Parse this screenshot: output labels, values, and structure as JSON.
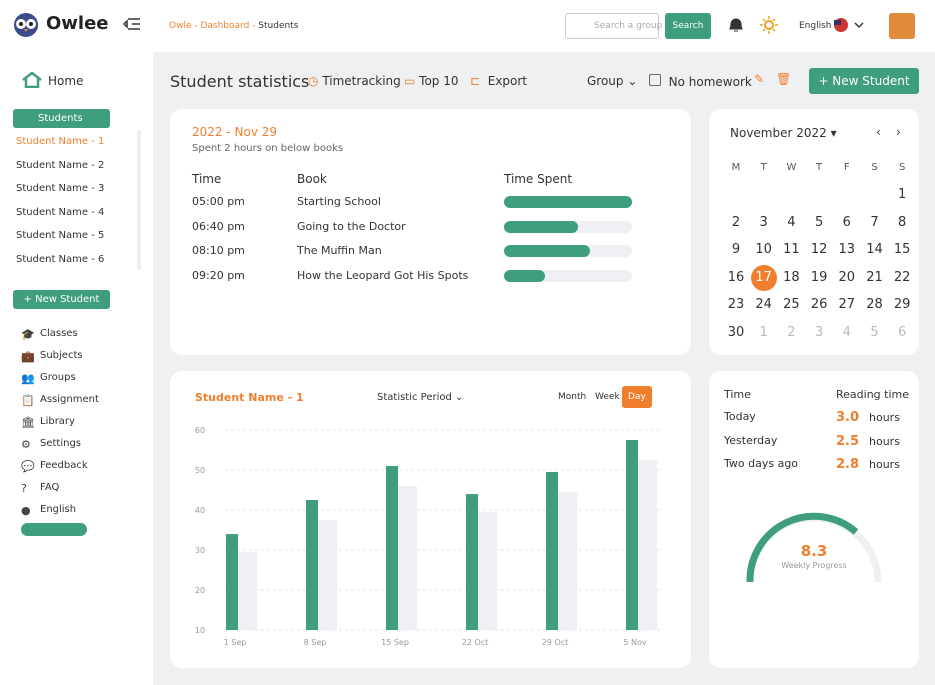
{
  "header": {
    "brand": "Owlee",
    "breadcrumb": [
      "Owle -",
      "Dashboard -",
      "Students"
    ],
    "search_placeholder": "Search a group",
    "search_button": "Search",
    "language": "English"
  },
  "sidebar": {
    "home": "Home",
    "students": "Students",
    "student_list": [
      "Student Name - 1",
      "Student Name - 2",
      "Student Name - 3",
      "Student Name - 4",
      "Student Name - 5",
      "Student Name - 6"
    ],
    "new_student": "+ New Student",
    "menu": [
      "Classes",
      "Subjects",
      "Groups",
      "Assignment",
      "Library",
      "Settings",
      "Feedback",
      "FAQ",
      "English"
    ]
  },
  "toolbar": {
    "title": "Student statistics",
    "timetracking": "Timetracking",
    "top10": "Top 10",
    "export": "Export",
    "group": "Group",
    "no_homework": "No homework",
    "new_student": "+ New Student"
  },
  "books": {
    "date": "2022 - Nov 29",
    "subtitle": "Spent 2 hours on below books",
    "columns": [
      "Time",
      "Book",
      "Time Spent"
    ],
    "rows": [
      {
        "time": "05:00 pm",
        "book": "Starting School",
        "spent": 100
      },
      {
        "time": "06:40 pm",
        "book": "Going to the Doctor",
        "spent": 58
      },
      {
        "time": "08:10 pm",
        "book": "The Muffin Man",
        "spent": 67
      },
      {
        "time": "09:20 pm",
        "book": "How the Leopard Got His Spots",
        "spent": 32
      }
    ]
  },
  "calendar": {
    "month": "November 2022",
    "weekdays": [
      "M",
      "T",
      "W",
      "T",
      "F",
      "S",
      "S"
    ],
    "days": [
      1,
      2,
      3,
      4,
      5,
      6,
      7,
      8,
      9,
      10,
      11,
      12,
      13,
      14,
      15,
      16,
      17,
      18,
      19,
      20,
      21,
      22,
      23,
      24,
      25,
      26,
      27,
      28,
      29,
      30
    ],
    "next_days": [
      1,
      2,
      3,
      4,
      5,
      6
    ],
    "selected_day": 17
  },
  "chart_data": {
    "type": "bar",
    "title": "Student Name - 1",
    "period": "Statistic Period",
    "tabs": [
      "Month",
      "Week",
      "Day"
    ],
    "categories": [
      "1 Sep",
      "8 Sep",
      "15 Sep",
      "22 Oct",
      "29 Oct",
      "5 Nov"
    ],
    "ylim": [
      10,
      60
    ],
    "yticks": [
      10,
      20,
      30,
      40,
      50,
      60
    ],
    "grid": true,
    "series": [
      {
        "color": "#3e9e7e",
        "values": [
          34,
          42.5,
          51,
          44,
          49.5,
          57.5
        ]
      },
      {
        "color": "#eef0f3",
        "values": [
          29.5,
          37.5,
          46,
          39.5,
          44.5,
          52.5
        ]
      }
    ]
  },
  "reading": {
    "columns": [
      "Time",
      "Reading time"
    ],
    "rows": [
      {
        "label": "Today",
        "value": "3.0",
        "unit": "hours"
      },
      {
        "label": "Yesterday",
        "value": "2.5",
        "unit": "hours"
      },
      {
        "label": "Two days ago",
        "value": "2.8",
        "unit": "hours"
      }
    ]
  },
  "gauge": {
    "value": "8.3",
    "label": "Weekly Progress"
  }
}
